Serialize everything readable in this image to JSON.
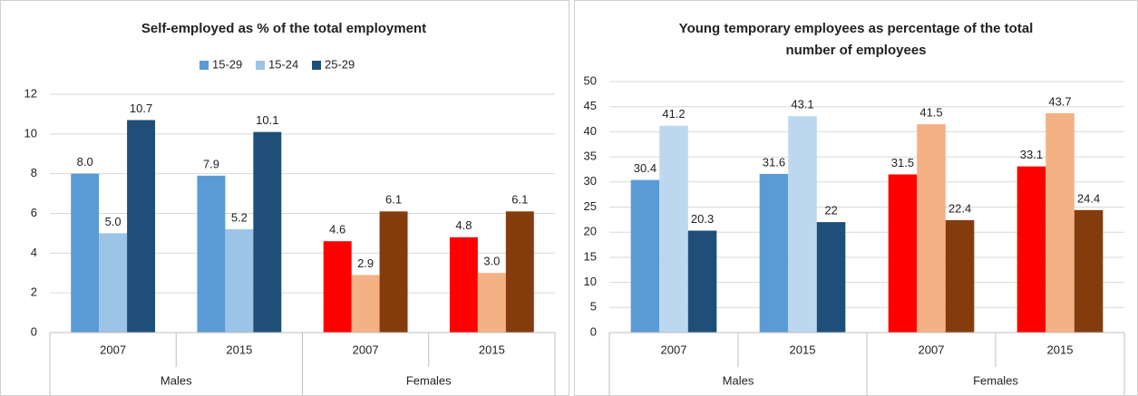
{
  "chart_data": [
    {
      "type": "bar",
      "title": [
        "Self-employed as % of the total employment"
      ],
      "groups": [
        {
          "name": "Males",
          "categories": [
            "2007",
            "2015"
          ]
        },
        {
          "name": "Females",
          "categories": [
            "2007",
            "2015"
          ]
        }
      ],
      "series": [
        {
          "name": "15-29",
          "color": "#5b9bd5",
          "colors": [
            "#5b9bd5",
            "#5b9bd5",
            "#ff0000",
            "#ff0000"
          ],
          "values": [
            8.0,
            7.9,
            4.6,
            4.8
          ],
          "value_labels": [
            "8.0",
            "7.9",
            "4.6",
            "4.8"
          ]
        },
        {
          "name": "15-24",
          "color": "#9dc3e6",
          "colors": [
            "#9dc3e6",
            "#9dc3e6",
            "#f4b183",
            "#f4b183"
          ],
          "values": [
            5.0,
            5.2,
            2.9,
            3.0
          ],
          "value_labels": [
            "5.0",
            "5.2",
            "2.9",
            "3.0"
          ]
        },
        {
          "name": "25-29",
          "color": "#1f4e79",
          "colors": [
            "#1f4e79",
            "#1f4e79",
            "#843c0c",
            "#843c0c"
          ],
          "values": [
            10.7,
            10.1,
            6.1,
            6.1
          ],
          "value_labels": [
            "10.7",
            "10.1",
            "6.1",
            "6.1"
          ]
        }
      ],
      "ylim": [
        0,
        12
      ],
      "yticks": [
        0,
        2,
        4,
        6,
        8,
        10,
        12
      ],
      "grid": true,
      "legend": "top"
    },
    {
      "type": "bar",
      "title": [
        "Young temporary employees as percentage of the total",
        "number of employees"
      ],
      "groups": [
        {
          "name": "Males",
          "categories": [
            "2007",
            "2015"
          ]
        },
        {
          "name": "Females",
          "categories": [
            "2007",
            "2015"
          ]
        }
      ],
      "series": [
        {
          "colors": [
            "#5b9bd5",
            "#5b9bd5",
            "#ff0000",
            "#ff0000"
          ],
          "values": [
            30.4,
            31.6,
            31.5,
            33.1
          ]
        },
        {
          "colors": [
            "#bdd7ee",
            "#bdd7ee",
            "#f4b183",
            "#f4b183"
          ],
          "values": [
            41.2,
            43.1,
            41.5,
            43.7
          ]
        },
        {
          "colors": [
            "#1f4e79",
            "#1f4e79",
            "#843c0c",
            "#843c0c"
          ],
          "values": [
            20.3,
            22,
            22.4,
            24.4
          ]
        }
      ],
      "ylim": [
        0,
        50
      ],
      "yticks": [
        0,
        5,
        10,
        15,
        20,
        25,
        30,
        35,
        40,
        45,
        50
      ],
      "grid": true
    }
  ]
}
